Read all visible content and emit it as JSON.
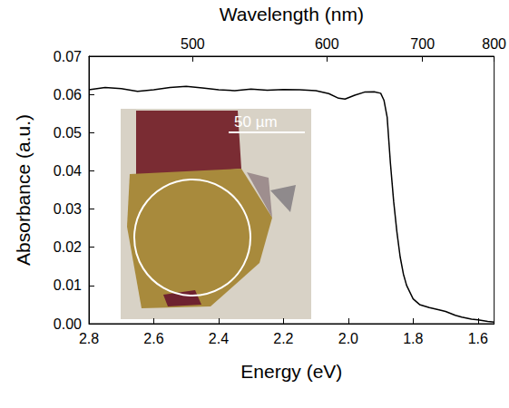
{
  "chart_data": {
    "type": "line",
    "x_label": "Energy (eV)",
    "y_label": "Absorbance (a.u.)",
    "x2_label": "Wavelength (nm)",
    "xlim": [
      2.8,
      1.55
    ],
    "xticks": [
      2.8,
      2.6,
      2.4,
      2.2,
      {
        "value": 2,
        "label": "2.0"
      },
      1.8,
      1.6
    ],
    "x2ticks": [
      {
        "value": 2.48,
        "label": "500"
      },
      {
        "value": 2.066,
        "label": "600"
      },
      {
        "value": 1.771,
        "label": "700"
      },
      {
        "value": 1.55,
        "label": "800"
      }
    ],
    "ylim": [
      0,
      0.07
    ],
    "yticks": [
      {
        "value": 0,
        "label": "0.00"
      },
      0.01,
      0.02,
      0.03,
      0.04,
      0.05,
      0.06,
      0.07
    ],
    "grid": false,
    "color": "#000000",
    "x": [
      2.8,
      2.75,
      2.7,
      2.65,
      2.6,
      2.55,
      2.5,
      2.45,
      2.4,
      2.35,
      2.3,
      2.25,
      2.2,
      2.15,
      2.1,
      2.06,
      2.03,
      2.01,
      1.98,
      1.95,
      1.92,
      1.9,
      1.89,
      1.88,
      1.87,
      1.86,
      1.85,
      1.84,
      1.83,
      1.82,
      1.8,
      1.78,
      1.75,
      1.72,
      1.7,
      1.67,
      1.65,
      1.62,
      1.6,
      1.57,
      1.55
    ],
    "values": [
      0.0612,
      0.0618,
      0.0615,
      0.0608,
      0.0612,
      0.0618,
      0.0621,
      0.0617,
      0.0612,
      0.061,
      0.0614,
      0.0611,
      0.0613,
      0.0612,
      0.061,
      0.0602,
      0.059,
      0.0588,
      0.0598,
      0.0606,
      0.0607,
      0.0603,
      0.0585,
      0.054,
      0.042,
      0.032,
      0.024,
      0.0175,
      0.013,
      0.01,
      0.0065,
      0.005,
      0.0042,
      0.0036,
      0.0032,
      0.0022,
      0.0017,
      0.0012,
      0.001,
      0.0006,
      0.0004
    ],
    "inset": {
      "scale_bar": "50 µm"
    }
  }
}
